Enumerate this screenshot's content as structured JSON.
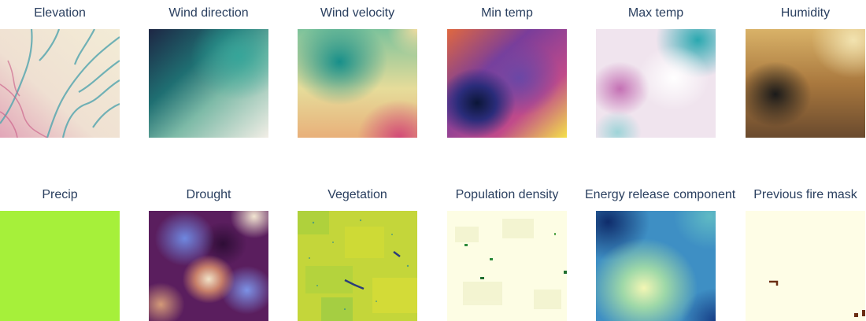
{
  "chart_data": [
    {
      "type": "heatmap",
      "title": "Elevation",
      "colormap": "teal-cream-pink"
    },
    {
      "type": "heatmap",
      "title": "Wind direction",
      "colormap": "dark-navy-to-cream"
    },
    {
      "type": "heatmap",
      "title": "Wind velocity",
      "colormap": "teal-yellow-magenta"
    },
    {
      "type": "heatmap",
      "title": "Min temp",
      "colormap": "plasma-like"
    },
    {
      "type": "heatmap",
      "title": "Max temp",
      "colormap": "teal-white-magenta"
    },
    {
      "type": "heatmap",
      "title": "Humidity",
      "colormap": "brown-tan"
    },
    {
      "type": "heatmap",
      "title": "Precip",
      "colormap": "uniform-lime"
    },
    {
      "type": "heatmap",
      "title": "Drought",
      "colormap": "dark-purple-blue-cream"
    },
    {
      "type": "heatmap",
      "title": "Vegetation",
      "colormap": "viridis-like"
    },
    {
      "type": "heatmap",
      "title": "Population density",
      "colormap": "cream-green"
    },
    {
      "type": "heatmap",
      "title": "Energy release component",
      "colormap": "yellow-green-blue"
    },
    {
      "type": "heatmap",
      "title": "Previous fire mask",
      "colormap": "cream-brown"
    }
  ]
}
